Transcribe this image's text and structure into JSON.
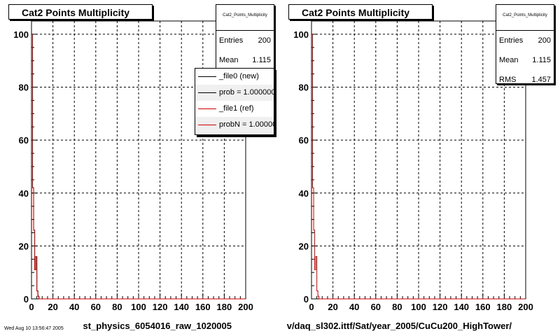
{
  "panels": [
    {
      "title": "Cat2 Points Multiplicity",
      "xlabel": "st_physics_6054016_raw_1020005",
      "stats": {
        "header": "Cat2_Points_Multiplicity",
        "rows": [
          {
            "name": "Entries",
            "value": "200"
          },
          {
            "name": "Mean",
            "value": "1.115"
          }
        ]
      },
      "legend": [
        {
          "label": "_file0 (new)",
          "color": "#000000"
        },
        {
          "label": "prob = 1.000000",
          "color": "#000000"
        },
        {
          "label": "_file1 (ref)",
          "color": "#cc0000"
        },
        {
          "label": "probN = 1.000000",
          "color": "#cc0000"
        }
      ]
    },
    {
      "title": "Cat2 Points Multiplicity",
      "xlabel": "v/daq_sl302.ittf/Sat/year_2005/CuCu200_HighTower/",
      "stats": {
        "header": "Cat2_Points_Multiplicity",
        "rows": [
          {
            "name": "Entries",
            "value": "200"
          },
          {
            "name": "Mean",
            "value": "1.115"
          },
          {
            "name": "RMS",
            "value": "1.457"
          }
        ]
      },
      "legend": []
    }
  ],
  "chart_data": [
    {
      "type": "line",
      "title": "Cat2 Points Multiplicity",
      "xlabel": "st_physics_6054016_raw_1020005",
      "ylabel": "",
      "xlim": [
        0,
        200
      ],
      "ylim": [
        0,
        105
      ],
      "xticks": [
        0,
        20,
        40,
        60,
        80,
        100,
        120,
        140,
        160,
        180,
        200
      ],
      "yticks": [
        0,
        20,
        40,
        60,
        80,
        100
      ],
      "grid": true,
      "series": [
        {
          "name": "_file0 (new)",
          "color": "#000000",
          "x": [
            0,
            1,
            2,
            3,
            4,
            5,
            6,
            7,
            8,
            200
          ],
          "y": [
            100,
            42,
            26,
            11,
            16,
            3,
            1,
            0,
            0,
            0
          ]
        },
        {
          "name": "_file1 (ref)",
          "color": "#cc0000",
          "x": [
            0,
            1,
            2,
            3,
            4,
            5,
            6,
            7,
            8,
            200
          ],
          "y": [
            100,
            42,
            26,
            11,
            16,
            3,
            1,
            0,
            0,
            0
          ]
        }
      ]
    },
    {
      "type": "line",
      "title": "Cat2 Points Multiplicity",
      "xlabel": "v/daq_sl302.ittf/Sat/year_2005/CuCu200_HighTower/",
      "ylabel": "",
      "xlim": [
        0,
        200
      ],
      "ylim": [
        0,
        105
      ],
      "xticks": [
        0,
        20,
        40,
        60,
        80,
        100,
        120,
        140,
        160,
        180,
        200
      ],
      "yticks": [
        0,
        20,
        40,
        60,
        80,
        100
      ],
      "grid": true,
      "series": [
        {
          "name": "",
          "color": "#cc0000",
          "x": [
            0,
            1,
            2,
            3,
            4,
            5,
            6,
            7,
            8,
            200
          ],
          "y": [
            100,
            42,
            26,
            11,
            16,
            3,
            1,
            0,
            0,
            0
          ]
        }
      ]
    }
  ],
  "footer": "Wed Aug 10 13:56:47 2005"
}
